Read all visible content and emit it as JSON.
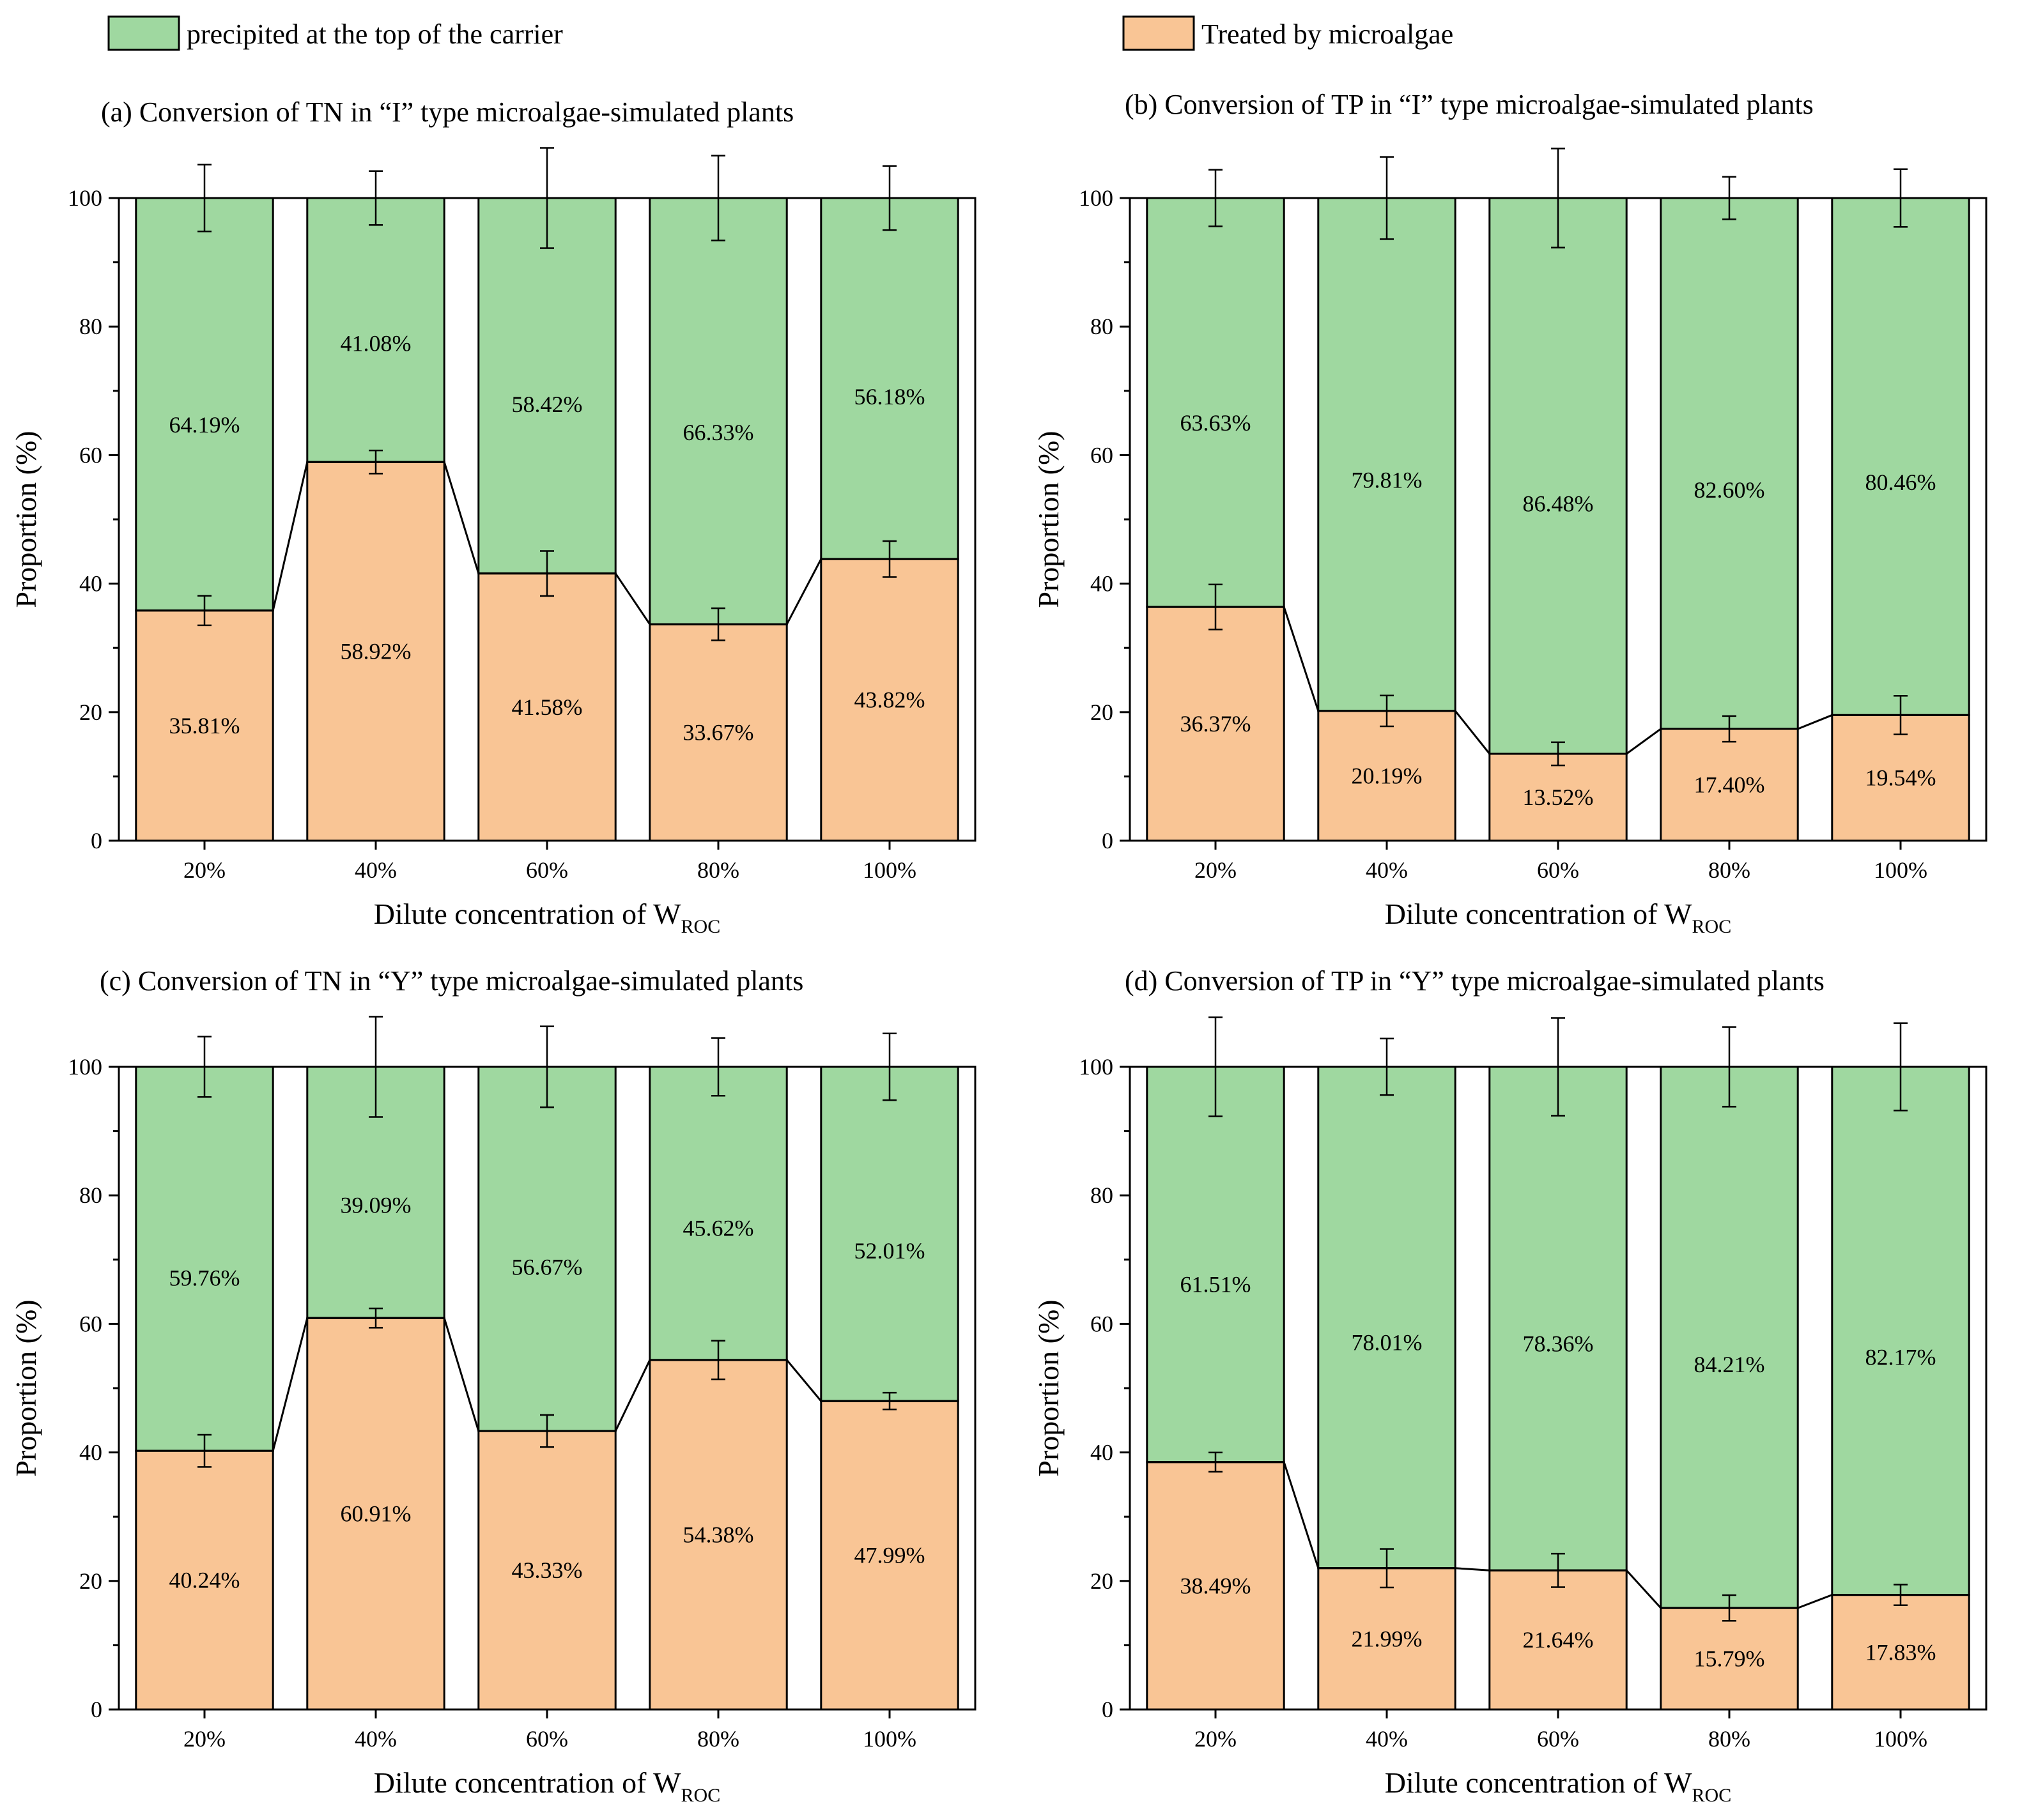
{
  "legend": {
    "precipitated": {
      "label": "precipited at the top of the carrier",
      "color": "#9fd8a0"
    },
    "treated": {
      "label": "Treated by microalgae",
      "color": "#f9c595"
    }
  },
  "chart_data": [
    {
      "type": "bar",
      "stacked": true,
      "title": "(a) Conversion of TN in “I” type microalgae-simulated plants",
      "xlabel": "Dilute concentration of W",
      "xlabel_sub": "ROC",
      "ylabel": "Proportion (%)",
      "ylim": [
        0,
        100
      ],
      "yticks": [
        0,
        20,
        40,
        60,
        80,
        100
      ],
      "categories": [
        "20%",
        "40%",
        "60%",
        "80%",
        "100%"
      ],
      "series": [
        {
          "name": "Treated by microalgae",
          "values": [
            35.81,
            58.92,
            41.58,
            33.67,
            43.82
          ],
          "labels": [
            "35.81%",
            "58.92%",
            "41.58%",
            "33.67%",
            "43.82%"
          ],
          "errors": [
            2.3,
            1.8,
            3.5,
            2.5,
            2.8
          ]
        },
        {
          "name": "precipited at the top of the carrier",
          "values": [
            64.19,
            41.08,
            58.42,
            66.33,
            56.18
          ],
          "labels": [
            "64.19%",
            "41.08%",
            "58.42%",
            "66.33%",
            "56.18%"
          ],
          "errors": [
            5.2,
            4.2,
            7.8,
            6.6,
            5.0
          ]
        }
      ]
    },
    {
      "type": "bar",
      "stacked": true,
      "title": "(b) Conversion of TP in “I” type microalgae-simulated plants",
      "xlabel": "Dilute concentration of W",
      "xlabel_sub": "ROC",
      "ylabel": "Proportion (%)",
      "ylim": [
        0,
        100
      ],
      "yticks": [
        0,
        20,
        40,
        60,
        80,
        100
      ],
      "categories": [
        "20%",
        "40%",
        "60%",
        "80%",
        "100%"
      ],
      "series": [
        {
          "name": "Treated by microalgae",
          "values": [
            36.37,
            20.19,
            13.52,
            17.4,
            19.54
          ],
          "labels": [
            "36.37%",
            "20.19%",
            "13.52%",
            "17.40%",
            "19.54%"
          ],
          "errors": [
            3.5,
            2.4,
            1.8,
            2.0,
            3.0
          ]
        },
        {
          "name": "precipited at the top of the carrier",
          "values": [
            63.63,
            79.81,
            86.48,
            82.6,
            80.46
          ],
          "labels": [
            "63.63%",
            "79.81%",
            "86.48%",
            "82.60%",
            "80.46%"
          ],
          "errors": [
            4.4,
            6.4,
            7.7,
            3.3,
            4.5
          ]
        }
      ]
    },
    {
      "type": "bar",
      "stacked": true,
      "title": "(c) Conversion of TN in “Y” type microalgae-simulated plants",
      "xlabel": "Dilute concentration of W",
      "xlabel_sub": "ROC",
      "ylabel": "Proportion (%)",
      "ylim": [
        0,
        100
      ],
      "yticks": [
        0,
        20,
        40,
        60,
        80,
        100
      ],
      "categories": [
        "20%",
        "40%",
        "60%",
        "80%",
        "100%"
      ],
      "series": [
        {
          "name": "Treated by microalgae",
          "values": [
            40.24,
            60.91,
            43.33,
            54.38,
            47.99
          ],
          "labels": [
            "40.24%",
            "60.91%",
            "43.33%",
            "54.38%",
            "47.99%"
          ],
          "errors": [
            2.5,
            1.5,
            2.5,
            3.0,
            1.3
          ]
        },
        {
          "name": "precipited at the top of the carrier",
          "values": [
            59.76,
            39.09,
            56.67,
            45.62,
            52.01
          ],
          "labels": [
            "59.76%",
            "39.09%",
            "56.67%",
            "45.62%",
            "52.01%"
          ],
          "errors": [
            4.7,
            7.8,
            6.3,
            4.5,
            5.2
          ]
        }
      ]
    },
    {
      "type": "bar",
      "stacked": true,
      "title": "(d) Conversion of TP in “Y” type microalgae-simulated plants",
      "xlabel": "Dilute concentration of W",
      "xlabel_sub": "ROC",
      "ylabel": "Proportion (%)",
      "ylim": [
        0,
        100
      ],
      "yticks": [
        0,
        20,
        40,
        60,
        80,
        100
      ],
      "categories": [
        "20%",
        "40%",
        "60%",
        "80%",
        "100%"
      ],
      "series": [
        {
          "name": "Treated by microalgae",
          "values": [
            38.49,
            21.99,
            21.64,
            15.79,
            17.83
          ],
          "labels": [
            "38.49%",
            "21.99%",
            "21.64%",
            "15.79%",
            "17.83%"
          ],
          "errors": [
            1.5,
            3.0,
            2.6,
            2.0,
            1.6
          ]
        },
        {
          "name": "precipited at the top of the carrier",
          "values": [
            61.51,
            78.01,
            78.36,
            84.21,
            82.17
          ],
          "labels": [
            "61.51%",
            "78.01%",
            "78.36%",
            "84.21%",
            "82.17%"
          ],
          "errors": [
            7.7,
            4.4,
            7.6,
            6.2,
            6.8
          ]
        }
      ]
    }
  ]
}
